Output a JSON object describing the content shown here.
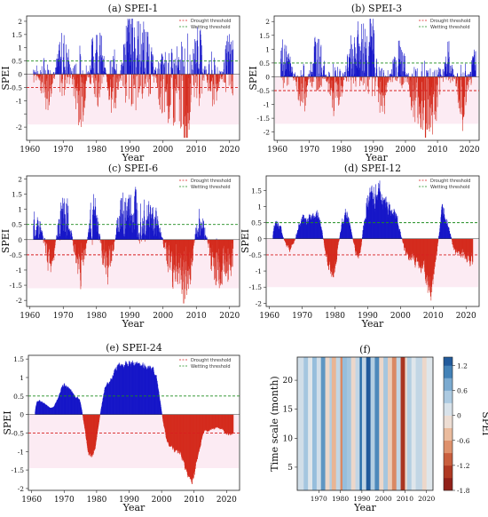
{
  "colors": {
    "wet_bar": "#1515c8",
    "dry_bar": "#d42a1c",
    "dry_shade": "#f7c6dc",
    "wet_shade": "#cfe0f7",
    "drought_line": "#d81f1f",
    "wetting_line": "#1e8c1e"
  },
  "chart_data": [
    {
      "id": "a",
      "type": "bar",
      "title": "(a)  SPEI-1",
      "xlabel": "Year",
      "ylabel": "SPEI",
      "xlim": [
        1959,
        2023
      ],
      "ylim": [
        -2.5,
        2.2
      ],
      "yticks": [
        -2,
        -1.5,
        -1,
        -0.5,
        0,
        0.5,
        1,
        1.5,
        2
      ],
      "ytick_labels": [
        "-2",
        "",
        "-1",
        "-0.5",
        "0",
        "0.5",
        "1",
        "1.5",
        "2"
      ],
      "xticks": [
        1960,
        1970,
        1980,
        1990,
        2000,
        2010,
        2020
      ],
      "legend": [
        "Drought threshold",
        "Wetting threshold"
      ],
      "drought_threshold": -0.5,
      "wetting_threshold": 0.5,
      "x": [
        1960,
        1965,
        1970,
        1975,
        1980,
        1985,
        1990,
        1995,
        2000,
        2005,
        2007,
        2010,
        2015,
        2020
      ],
      "values": [
        0.6,
        -0.9,
        1.2,
        -1.4,
        1.5,
        -1.1,
        2.0,
        1.3,
        -1.2,
        -1.5,
        -2.3,
        1.6,
        -1.0,
        1.1
      ]
    },
    {
      "id": "b",
      "type": "bar",
      "title": "(b)  SPEI-3",
      "xlabel": "Year",
      "ylabel": "SPEI",
      "xlim": [
        1959,
        2023
      ],
      "ylim": [
        -2.3,
        2.2
      ],
      "yticks": [
        -2,
        -1.5,
        -1,
        -0.5,
        0,
        0.5,
        1,
        1.5,
        2
      ],
      "ytick_labels": [
        "-2",
        "-1.5",
        "-1",
        "-0.5",
        "0",
        "0.5",
        "1",
        "1.5",
        "2"
      ],
      "xticks": [
        1960,
        1970,
        1980,
        1990,
        2000,
        2010,
        2020
      ],
      "legend": [
        "Drought threshold",
        "Wetting threshold"
      ],
      "drought_threshold": -0.5,
      "wetting_threshold": 0.5,
      "x": [
        1962,
        1968,
        1972,
        1978,
        1984,
        1990,
        1992,
        1998,
        2003,
        2007,
        2009,
        2013,
        2018,
        2021
      ],
      "values": [
        1.1,
        -1.0,
        1.4,
        -1.2,
        1.5,
        1.9,
        -1.3,
        1.2,
        -1.3,
        -2.1,
        -1.6,
        1.0,
        -1.4,
        0.7
      ]
    },
    {
      "id": "c",
      "type": "bar",
      "title": "(c)  SPEI-6",
      "xlabel": "Year",
      "ylabel": "SPEI",
      "xlim": [
        1959,
        2023
      ],
      "ylim": [
        -2.2,
        2.1
      ],
      "yticks": [
        -2,
        -1.5,
        -1,
        -0.5,
        0,
        0.5,
        1,
        1.5,
        2
      ],
      "ytick_labels": [
        "-2",
        "-1.5",
        "-1",
        "-0.5",
        "0",
        "0.5",
        "1",
        "1.5",
        "2"
      ],
      "xticks": [
        1960,
        1970,
        1980,
        1990,
        2000,
        2010,
        2020
      ],
      "legend": [
        "Drought threshold",
        "Wetting threshold"
      ],
      "drought_threshold": -0.5,
      "wetting_threshold": 0.5,
      "x": [
        1962,
        1966,
        1970,
        1975,
        1979,
        1983,
        1988,
        1992,
        1997,
        2003,
        2007,
        2011,
        2016,
        2020
      ],
      "values": [
        0.9,
        -1.0,
        1.5,
        -1.3,
        1.3,
        -1.4,
        1.5,
        1.6,
        1.1,
        -1.4,
        -2.0,
        1.0,
        -1.6,
        -1.2
      ]
    },
    {
      "id": "d",
      "type": "bar",
      "title": "(d)  SPEI-12",
      "xlabel": "Year",
      "ylabel": "SPEI",
      "xlim": [
        1959,
        2024
      ],
      "ylim": [
        -2.1,
        1.95
      ],
      "yticks": [
        -2,
        -1.5,
        -1,
        -0.5,
        0,
        0.5,
        1,
        1.5
      ],
      "ytick_labels": [
        "-2",
        "-1.5",
        "-1",
        "-0.5",
        "0",
        "0.5",
        "1",
        "1.5"
      ],
      "xticks": [
        1960,
        1970,
        1980,
        1990,
        2000,
        2010,
        2020
      ],
      "legend": [
        "Drought threshold",
        "Wetting threshold"
      ],
      "drought_threshold": -0.5,
      "wetting_threshold": 0.5,
      "x": [
        1962,
        1966,
        1970,
        1974,
        1979,
        1983,
        1987,
        1990,
        1993,
        1998,
        2002,
        2006,
        2009,
        2013,
        2017,
        2021
      ],
      "values": [
        0.6,
        -0.4,
        0.7,
        1.0,
        -1.3,
        1.0,
        -0.7,
        1.7,
        1.8,
        1.0,
        -0.7,
        -1.0,
        -2.0,
        1.1,
        -0.6,
        -0.8
      ]
    },
    {
      "id": "e",
      "type": "bar",
      "title": "(e)  SPEI-24",
      "xlabel": "Year",
      "ylabel": "SPEI",
      "xlim": [
        1959,
        2024
      ],
      "ylim": [
        -2.05,
        1.6
      ],
      "yticks": [
        -2,
        -1.5,
        -1,
        -0.5,
        0,
        0.5,
        1,
        1.5
      ],
      "ytick_labels": [
        "-2",
        "-1.5",
        "-1",
        "-0.5",
        "0",
        "0.5",
        "1",
        "1.5"
      ],
      "xticks": [
        1960,
        1970,
        1980,
        1990,
        2000,
        2010,
        2020
      ],
      "legend": [
        "Drought threshold",
        "Wetting threshold"
      ],
      "drought_threshold": -0.5,
      "wetting_threshold": 0.5,
      "x": [
        1962,
        1966,
        1970,
        1974,
        1978,
        1983,
        1986,
        1990,
        1993,
        1997,
        2002,
        2005,
        2009,
        2013,
        2017,
        2021
      ],
      "values": [
        0.4,
        0.2,
        0.9,
        0.5,
        -1.3,
        0.9,
        1.4,
        1.5,
        1.5,
        1.4,
        -0.9,
        -1.2,
        -1.9,
        -0.5,
        -0.4,
        -0.6
      ]
    },
    {
      "id": "f",
      "type": "heatmap",
      "title": "(f)",
      "xlabel": "Year",
      "ylabel": "Time scale  (month)",
      "colorbar_label": "SPEI",
      "xlim": [
        1960,
        2023
      ],
      "ylim": [
        1,
        24
      ],
      "xticks": [
        1970,
        1980,
        1990,
        2000,
        2010,
        2020
      ],
      "yticks": [
        5,
        10,
        15,
        20
      ],
      "colorbar_ticks": [
        -1.8,
        -1.2,
        -0.6,
        0,
        0.6,
        1.2
      ],
      "colorbar_range": [
        -1.8,
        1.4
      ],
      "year_start": [
        1960,
        1963,
        1965,
        1967,
        1969,
        1971,
        1973,
        1975,
        1976,
        1978,
        1980,
        1981,
        1983,
        1985,
        1987,
        1989,
        1990,
        1992,
        1994,
        1996,
        1998,
        2000,
        2002,
        2004,
        2006,
        2008,
        2010,
        2011,
        2013,
        2015,
        2018,
        2020
      ],
      "values": [
        0.2,
        0.5,
        0.1,
        0.6,
        0.2,
        0.9,
        -0.2,
        0.4,
        -0.5,
        0.3,
        -0.8,
        0.6,
        0.5,
        -0.2,
        0.3,
        1.2,
        0.3,
        1.3,
        0.4,
        1.0,
        -0.2,
        0.5,
        -0.3,
        -0.8,
        0.3,
        -1.4,
        -0.2,
        0.4,
        0.1,
        0.3,
        -0.2,
        0.1
      ]
    }
  ]
}
